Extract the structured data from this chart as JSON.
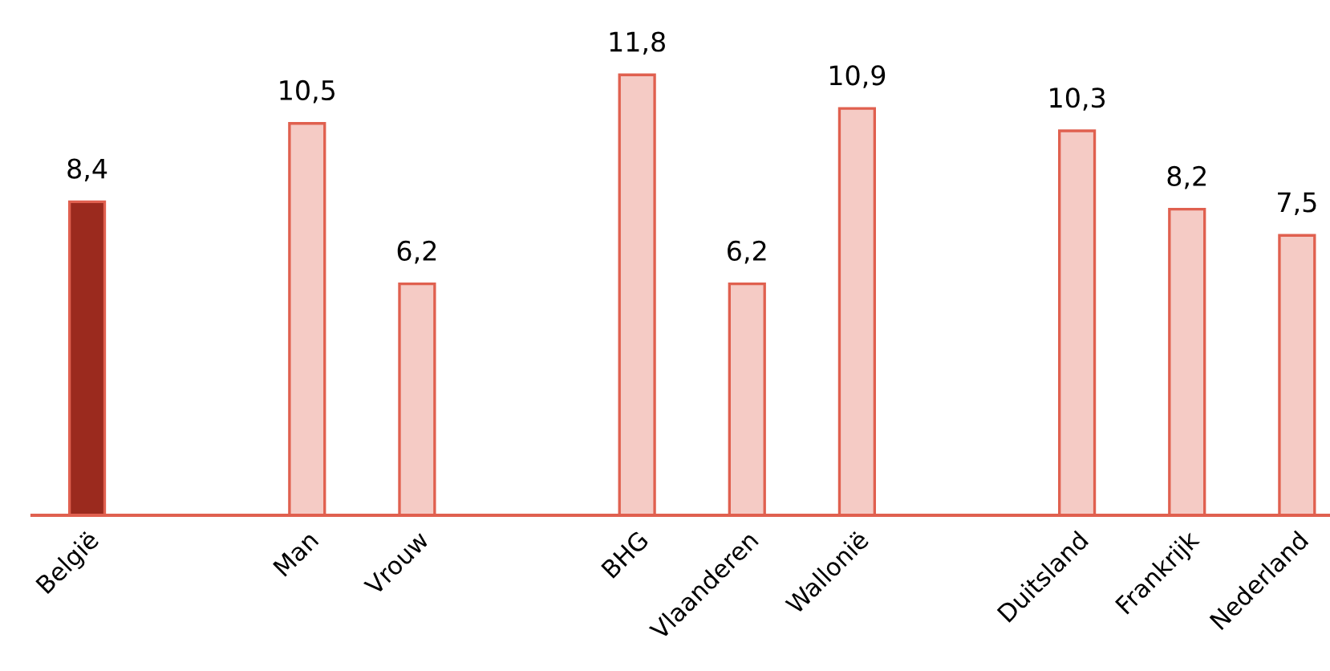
{
  "chart_data": {
    "type": "bar",
    "categories": [
      "België",
      null,
      "Man",
      "Vrouw",
      null,
      "BHG",
      "Vlaanderen",
      "Wallonië",
      null,
      "Duitsland",
      "Frankrijk",
      "Nederland"
    ],
    "values": [
      8.4,
      null,
      10.5,
      6.2,
      null,
      11.8,
      6.2,
      10.9,
      null,
      10.3,
      8.2,
      7.5
    ],
    "value_labels": [
      "8,4",
      null,
      "10,5",
      "6,2",
      null,
      "11,8",
      "6,2",
      "10,9",
      null,
      "10,3",
      "8,2",
      "7,5"
    ],
    "colors": [
      "#9b2a1e",
      null,
      "#f5cbc5",
      "#f5cbc5",
      null,
      "#f5cbc5",
      "#f5cbc5",
      "#f5cbc5",
      null,
      "#f5cbc5",
      "#f5cbc5",
      "#f5cbc5"
    ],
    "grid": false,
    "legend": false
  }
}
